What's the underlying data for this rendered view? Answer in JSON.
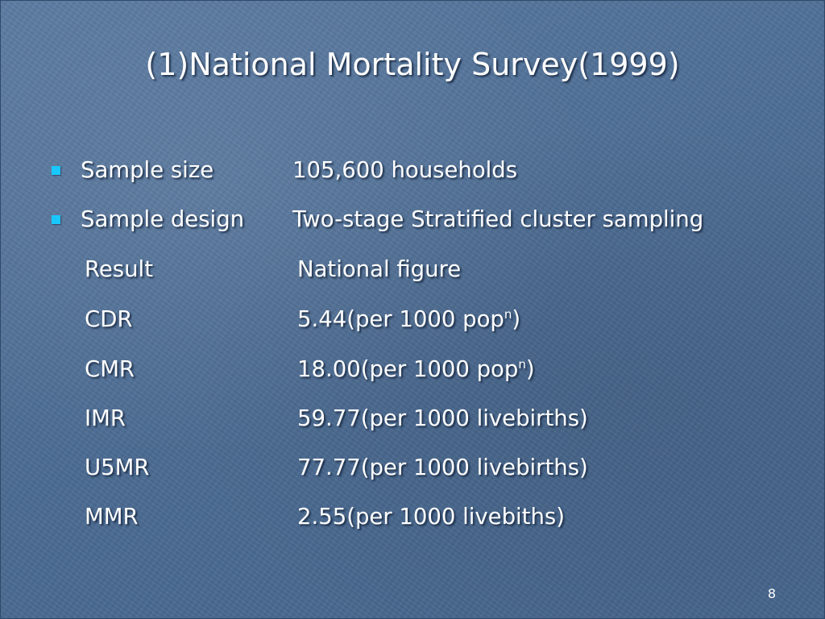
{
  "slide": {
    "title": "(1)National Mortality Survey(1999)",
    "page_number": "8",
    "accent_color": "#19c7ff",
    "background_color": "#4f6f96",
    "text_color": "#ffffff"
  },
  "bullets": [
    {
      "label": "Sample size",
      "value": "105,600 households"
    },
    {
      "label": "Sample design",
      "value": "Two-stage Stratified cluster sampling"
    }
  ],
  "rows": [
    {
      "label": "Result",
      "value": "National figure"
    },
    {
      "label": "CDR",
      "value": "5.44(per 1000 pop",
      "sup": "n",
      "suffix": ")"
    },
    {
      "label": "CMR",
      "value": "18.00(per 1000 pop",
      "sup": "n",
      "suffix": ")"
    },
    {
      "label": "IMR",
      "value": "59.77(per 1000 livebirths)"
    },
    {
      "label": "U5MR",
      "value": "77.77(per 1000 livebirths)"
    },
    {
      "label": "MMR",
      "value": "2.55(per 1000 livebiths)"
    }
  ]
}
